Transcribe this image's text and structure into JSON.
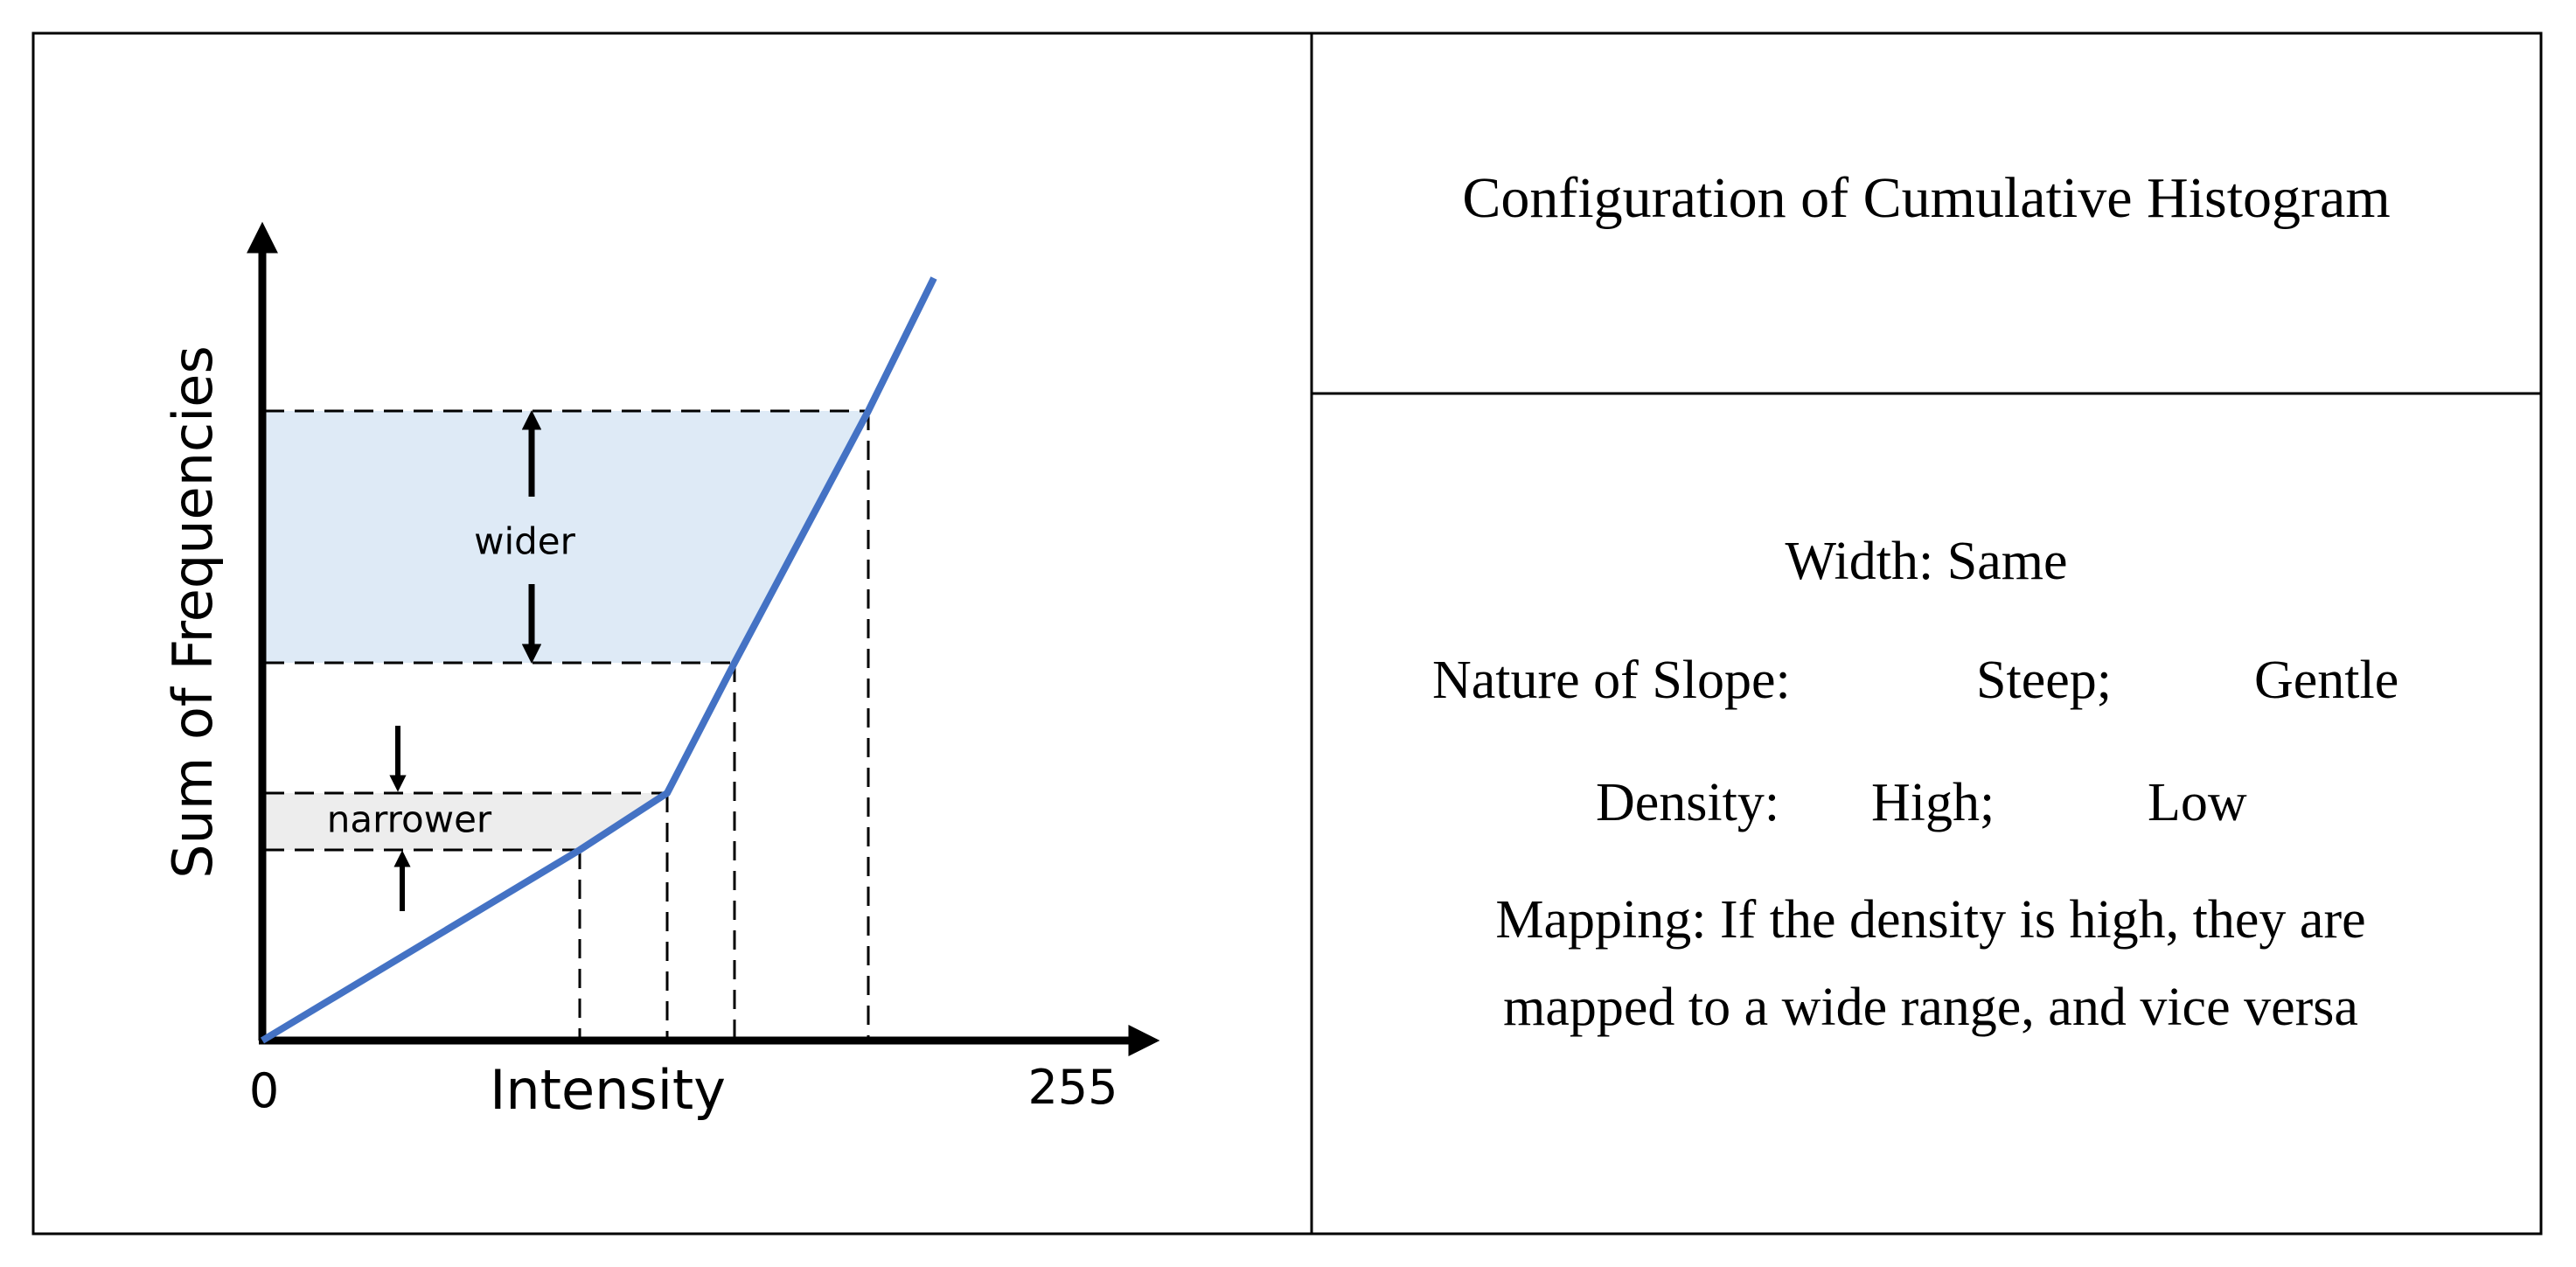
{
  "diagram": {
    "y_axis_label": "Sum of Frequencies",
    "x_axis_label": "Intensity",
    "x_min_label": "0",
    "x_max_label": "255",
    "wider_label": "wider",
    "narrower_label": "narrower",
    "curve_color": "#4472C4",
    "wider_fill_color": "#DEEAF6",
    "narrower_fill_color": "#EDEDED"
  },
  "table": {
    "header": "Configuration of Cumulative Histogram",
    "width_line": "Width: Same",
    "slope_label": "Nature of Slope:",
    "slope_steep": "Steep;",
    "slope_gentle": "Gentle",
    "density_label": "Density:",
    "density_high": "High;",
    "density_low": "Low",
    "mapping_line1": "Mapping: If the density is high, they are",
    "mapping_line2": "mapped to a wide range, and vice versa"
  }
}
